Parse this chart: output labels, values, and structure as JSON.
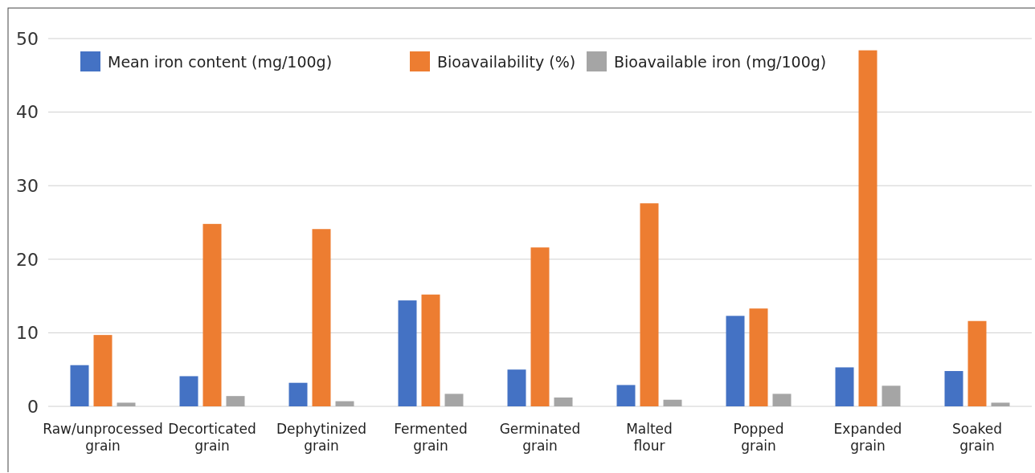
{
  "chart_data": {
    "type": "bar",
    "categories": [
      "Raw/unprocessed grain",
      "Decorticated grain",
      "Dephytinized grain",
      "Fermented grain",
      "Germinated grain",
      "Malted flour",
      "Popped grain",
      "Expanded grain",
      "Soaked grain"
    ],
    "series": [
      {
        "name": "Mean iron content (mg/100g)",
        "color": "#4472c4",
        "values": [
          5.6,
          4.1,
          3.2,
          14.4,
          5.0,
          2.9,
          12.3,
          5.3,
          4.8
        ]
      },
      {
        "name": "Bioavailability (%)",
        "color": "#ed7d31",
        "values": [
          9.7,
          24.8,
          24.1,
          15.2,
          21.6,
          27.6,
          13.3,
          48.4,
          11.6
        ]
      },
      {
        "name": "Bioavailable iron (mg/100g)",
        "color": "#a5a5a5",
        "values": [
          0.5,
          1.4,
          0.7,
          1.7,
          1.2,
          0.9,
          1.7,
          2.8,
          0.5
        ]
      }
    ],
    "ylim": [
      0,
      50
    ],
    "yticks": [
      0,
      10,
      20,
      30,
      40,
      50
    ],
    "grid": "y",
    "legend": "top left"
  }
}
